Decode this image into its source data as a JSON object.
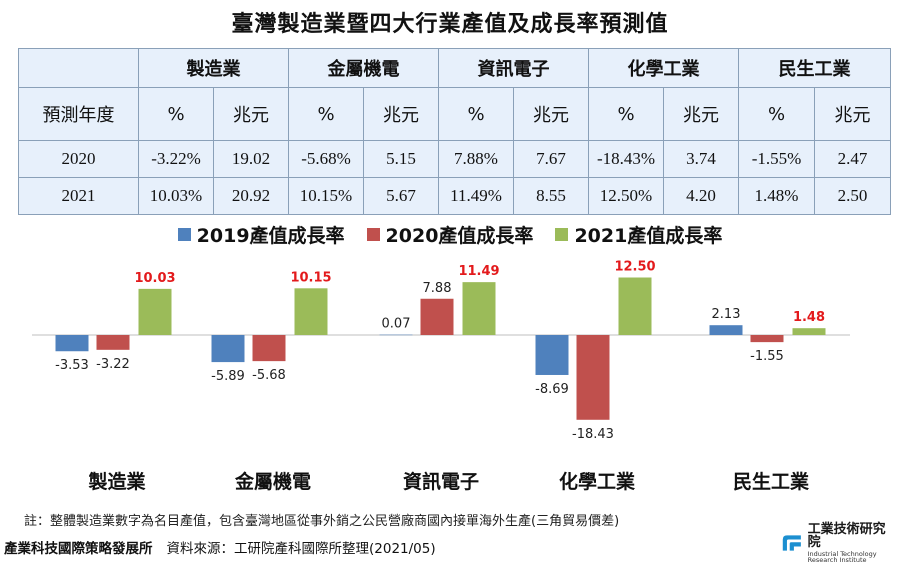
{
  "title": "臺灣製造業暨四大行業產值及成長率預測值",
  "table": {
    "corner": "",
    "groups": [
      "製造業",
      "金屬機電",
      "資訊電子",
      "化學工業",
      "民生工業"
    ],
    "row_label": "預測年度",
    "unit_pct": "%",
    "unit_value": "兆元",
    "rows": [
      {
        "year": "2020",
        "cells": [
          "-3.22%",
          "19.02",
          "-5.68%",
          "5.15",
          "7.88%",
          "7.67",
          "-18.43%",
          "3.74",
          "-1.55%",
          "2.47"
        ]
      },
      {
        "year": "2021",
        "cells": [
          "10.03%",
          "20.92",
          "10.15%",
          "5.67",
          "11.49%",
          "8.55",
          "12.50%",
          "4.20",
          "1.48%",
          "2.50"
        ]
      }
    ]
  },
  "chart_data": {
    "type": "bar",
    "categories": [
      "製造業",
      "金屬機電",
      "資訊電子",
      "化學工業",
      "民生工業"
    ],
    "series": [
      {
        "name": "2019產值成長率",
        "color": "#4f81bd",
        "label_color": "#222222",
        "values": [
          -3.53,
          -5.89,
          0.07,
          -8.69,
          2.13
        ]
      },
      {
        "name": "2020產值成長率",
        "color": "#c0504d",
        "label_color": "#222222",
        "values": [
          -3.22,
          -5.68,
          7.88,
          -18.43,
          -1.55
        ]
      },
      {
        "name": "2021產值成長率",
        "color": "#9bbb59",
        "label_color": "#e31a1c",
        "values": [
          10.03,
          10.15,
          11.49,
          12.5,
          1.48
        ]
      }
    ],
    "legend_position": "top",
    "grid": false
  },
  "footnote": "註：整體製造業數字為名目產值，包含臺灣地區從事外銷之公民營廠商國內接單海外生產(三角貿易價差)",
  "source": {
    "org": "產業科技國際策略發展所",
    "text": "資料來源：工研院產科國際所整理(2021/05)"
  },
  "logo": {
    "name_cn": "工業技術研究院",
    "name_en": "Industrial Technology Research Institute"
  }
}
